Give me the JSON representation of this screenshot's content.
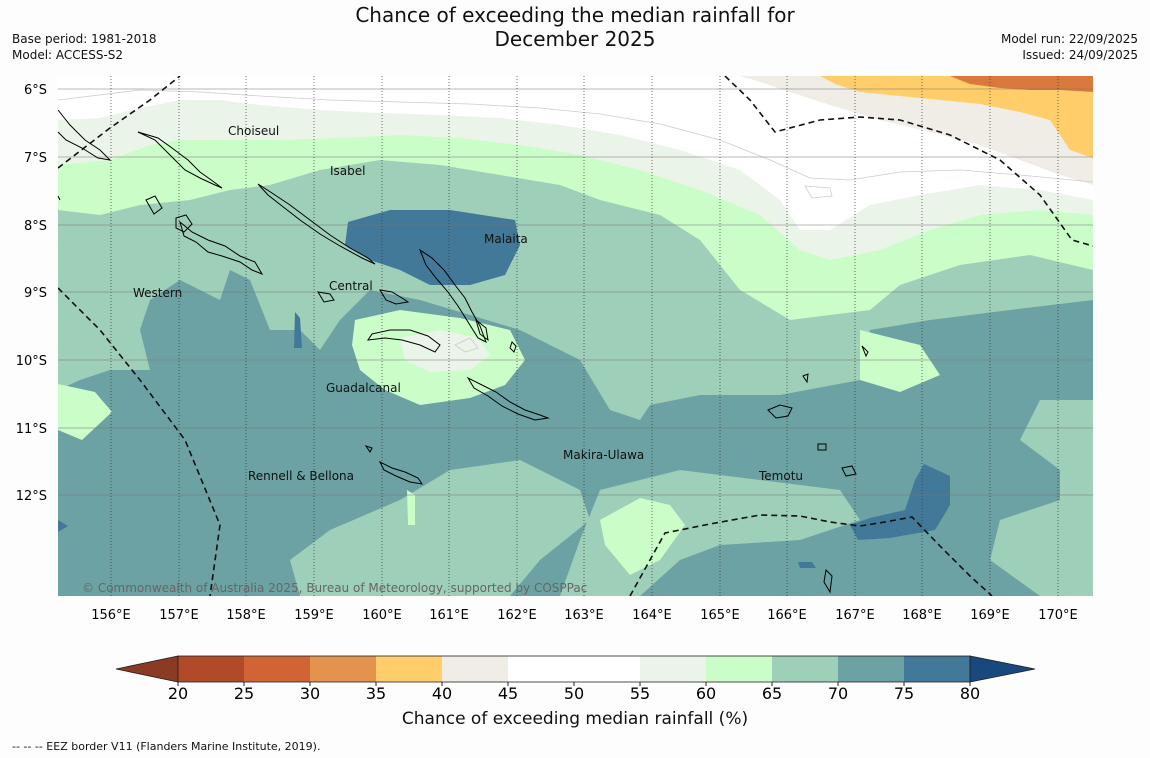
{
  "title_line1": "Chance of exceeding the median rainfall for",
  "title_line2": "December 2025",
  "base_period": "Base period: 1981-2018",
  "model": "Model: ACCESS-S2",
  "model_run": "Model run: 22/09/2025",
  "issued": "Issued: 24/09/2025",
  "lat_labels": [
    "6°S",
    "7°S",
    "8°S",
    "9°S",
    "10°S",
    "11°S",
    "12°S"
  ],
  "lon_labels": [
    "156°E",
    "157°E",
    "158°E",
    "159°E",
    "160°E",
    "161°E",
    "162°E",
    "163°E",
    "164°E",
    "165°E",
    "166°E",
    "167°E",
    "168°E",
    "169°E",
    "170°E"
  ],
  "places": {
    "choiseul": "Choiseul",
    "isabel": "Isabel",
    "malaita": "Malaita",
    "western": "Western",
    "central": "Central",
    "guadalcanal": "Guadalcanal",
    "makira": "Makira-Ulawa",
    "rennell": "Rennell & Bellona",
    "temotu": "Temotu"
  },
  "copyright": "© Commonwealth of Australia 2025, Bureau of Meteorology, supported by COSPPac",
  "colorbar": {
    "ticks": [
      "20",
      "25",
      "30",
      "35",
      "40",
      "45",
      "50",
      "55",
      "60",
      "65",
      "70",
      "75",
      "80"
    ],
    "colors": {
      "lt20": "#8b3a24",
      "b20_25": "#b04a28",
      "b25_30": "#d06434",
      "b30_35": "#e3934c",
      "b35_40": "#ffce6a",
      "b40_45": "#f0ede6",
      "b45_50": "#ffffff",
      "b50_55": "#ffffff",
      "b55_60": "#ebf4e9",
      "b60_65": "#cbfdc9",
      "b65_70": "#9ecfb8",
      "b70_75": "#6ca2a3",
      "b75_80": "#427998",
      "gt80": "#17497e"
    },
    "label": "Chance of exceeding median rainfall (%)"
  },
  "footnote": "--  --  -- EEZ border V11 (Flanders Marine Institute, 2019)."
}
